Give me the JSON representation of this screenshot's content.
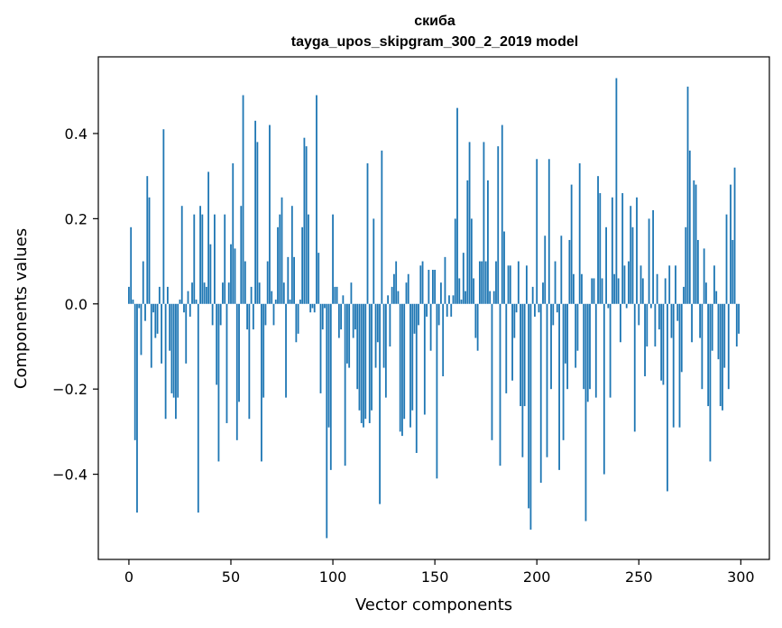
{
  "chart_data": {
    "type": "bar",
    "title": "скиба",
    "subtitle": "tayga_upos_skipgram_300_2_2019 model",
    "xlabel": "Vector components",
    "ylabel": "Components values",
    "xlim": [
      -15,
      314
    ],
    "ylim": [
      -0.6,
      0.58
    ],
    "xticks": [
      0,
      50,
      100,
      150,
      200,
      250,
      300
    ],
    "yticks": [
      -0.4,
      -0.2,
      0.0,
      0.2,
      0.4
    ],
    "ytick_labels": [
      "−0.4",
      "−0.2",
      "0.0",
      "0.2",
      "0.4"
    ],
    "grid": false,
    "color": "#1f77b4",
    "x_start": 0,
    "values": [
      0.04,
      0.18,
      0.01,
      -0.32,
      -0.49,
      -0.01,
      -0.12,
      0.1,
      -0.04,
      0.3,
      0.25,
      -0.15,
      -0.02,
      -0.08,
      -0.07,
      0.04,
      -0.14,
      0.41,
      -0.27,
      0.04,
      -0.11,
      -0.21,
      -0.22,
      -0.27,
      -0.22,
      0.01,
      0.23,
      -0.02,
      -0.14,
      0.03,
      -0.03,
      0.05,
      0.21,
      0.01,
      -0.49,
      0.23,
      0.21,
      0.05,
      0.04,
      0.31,
      0.14,
      -0.05,
      0.21,
      -0.19,
      -0.37,
      -0.05,
      0.05,
      0.21,
      -0.28,
      0.05,
      0.14,
      0.33,
      0.13,
      -0.32,
      -0.23,
      0.23,
      0.49,
      0.1,
      -0.06,
      -0.27,
      0.04,
      -0.06,
      0.43,
      0.38,
      0.05,
      -0.37,
      -0.22,
      -0.05,
      0.1,
      0.42,
      0.03,
      -0.05,
      0.01,
      0.18,
      0.21,
      0.25,
      0.05,
      -0.22,
      0.11,
      0.01,
      0.23,
      0.11,
      -0.09,
      -0.07,
      0.01,
      0.18,
      0.39,
      0.37,
      0.21,
      -0.02,
      -0.01,
      -0.02,
      0.49,
      0.12,
      -0.21,
      -0.06,
      -0.01,
      -0.55,
      -0.29,
      -0.39,
      0.21,
      0.04,
      0.04,
      -0.08,
      -0.06,
      0.02,
      -0.38,
      -0.14,
      -0.15,
      0.05,
      -0.08,
      -0.06,
      -0.2,
      -0.25,
      -0.28,
      -0.29,
      -0.27,
      0.33,
      -0.28,
      -0.25,
      0.2,
      -0.15,
      -0.09,
      -0.47,
      0.36,
      -0.15,
      -0.22,
      0.02,
      -0.1,
      0.04,
      0.07,
      0.1,
      0.03,
      -0.3,
      -0.31,
      -0.27,
      0.05,
      0.07,
      -0.29,
      -0.25,
      -0.07,
      -0.35,
      -0.05,
      0.09,
      0.1,
      -0.26,
      -0.03,
      0.08,
      -0.11,
      0.08,
      0.08,
      -0.41,
      -0.05,
      0.05,
      -0.17,
      0.11,
      -0.03,
      0.02,
      -0.03,
      0.02,
      0.2,
      0.46,
      0.06,
      0.01,
      0.12,
      0.03,
      0.29,
      0.38,
      0.2,
      0.06,
      -0.08,
      -0.11,
      0.1,
      0.1,
      0.38,
      0.1,
      0.29,
      0.03,
      -0.32,
      0.03,
      0.1,
      0.37,
      -0.38,
      0.42,
      0.17,
      -0.21,
      0.09,
      0.09,
      -0.18,
      -0.08,
      -0.02,
      0.1,
      -0.24,
      -0.36,
      -0.24,
      0.09,
      -0.48,
      -0.53,
      0.04,
      -0.03,
      0.34,
      -0.02,
      -0.42,
      0.05,
      0.16,
      -0.36,
      0.34,
      -0.2,
      -0.05,
      0.1,
      -0.02,
      -0.39,
      0.16,
      -0.32,
      -0.14,
      -0.2,
      0.15,
      0.28,
      0.07,
      -0.15,
      -0.11,
      0.33,
      0.07,
      -0.2,
      -0.51,
      -0.23,
      -0.2,
      0.06,
      0.06,
      -0.22,
      0.3,
      0.26,
      0.06,
      -0.4,
      0.18,
      -0.01,
      -0.22,
      0.25,
      0.07,
      0.53,
      0.06,
      -0.09,
      0.26,
      0.09,
      -0.01,
      0.1,
      0.23,
      0.18,
      -0.3,
      0.25,
      -0.05,
      0.09,
      0.06,
      -0.17,
      -0.1,
      0.2,
      -0.01,
      0.22,
      -0.1,
      0.07,
      -0.06,
      -0.18,
      -0.19,
      0.06,
      -0.44,
      0.09,
      -0.08,
      -0.29,
      0.09,
      -0.04,
      -0.29,
      -0.16,
      0.04,
      0.18,
      0.51,
      0.36,
      -0.09,
      0.29,
      0.28,
      0.15,
      -0.08,
      -0.2,
      0.13,
      0.05,
      -0.24,
      -0.37,
      -0.11,
      0.09,
      0.03,
      -0.13,
      -0.24,
      -0.25,
      -0.15,
      0.21,
      -0.2,
      0.28,
      0.15,
      0.32,
      -0.1,
      -0.07
    ]
  }
}
